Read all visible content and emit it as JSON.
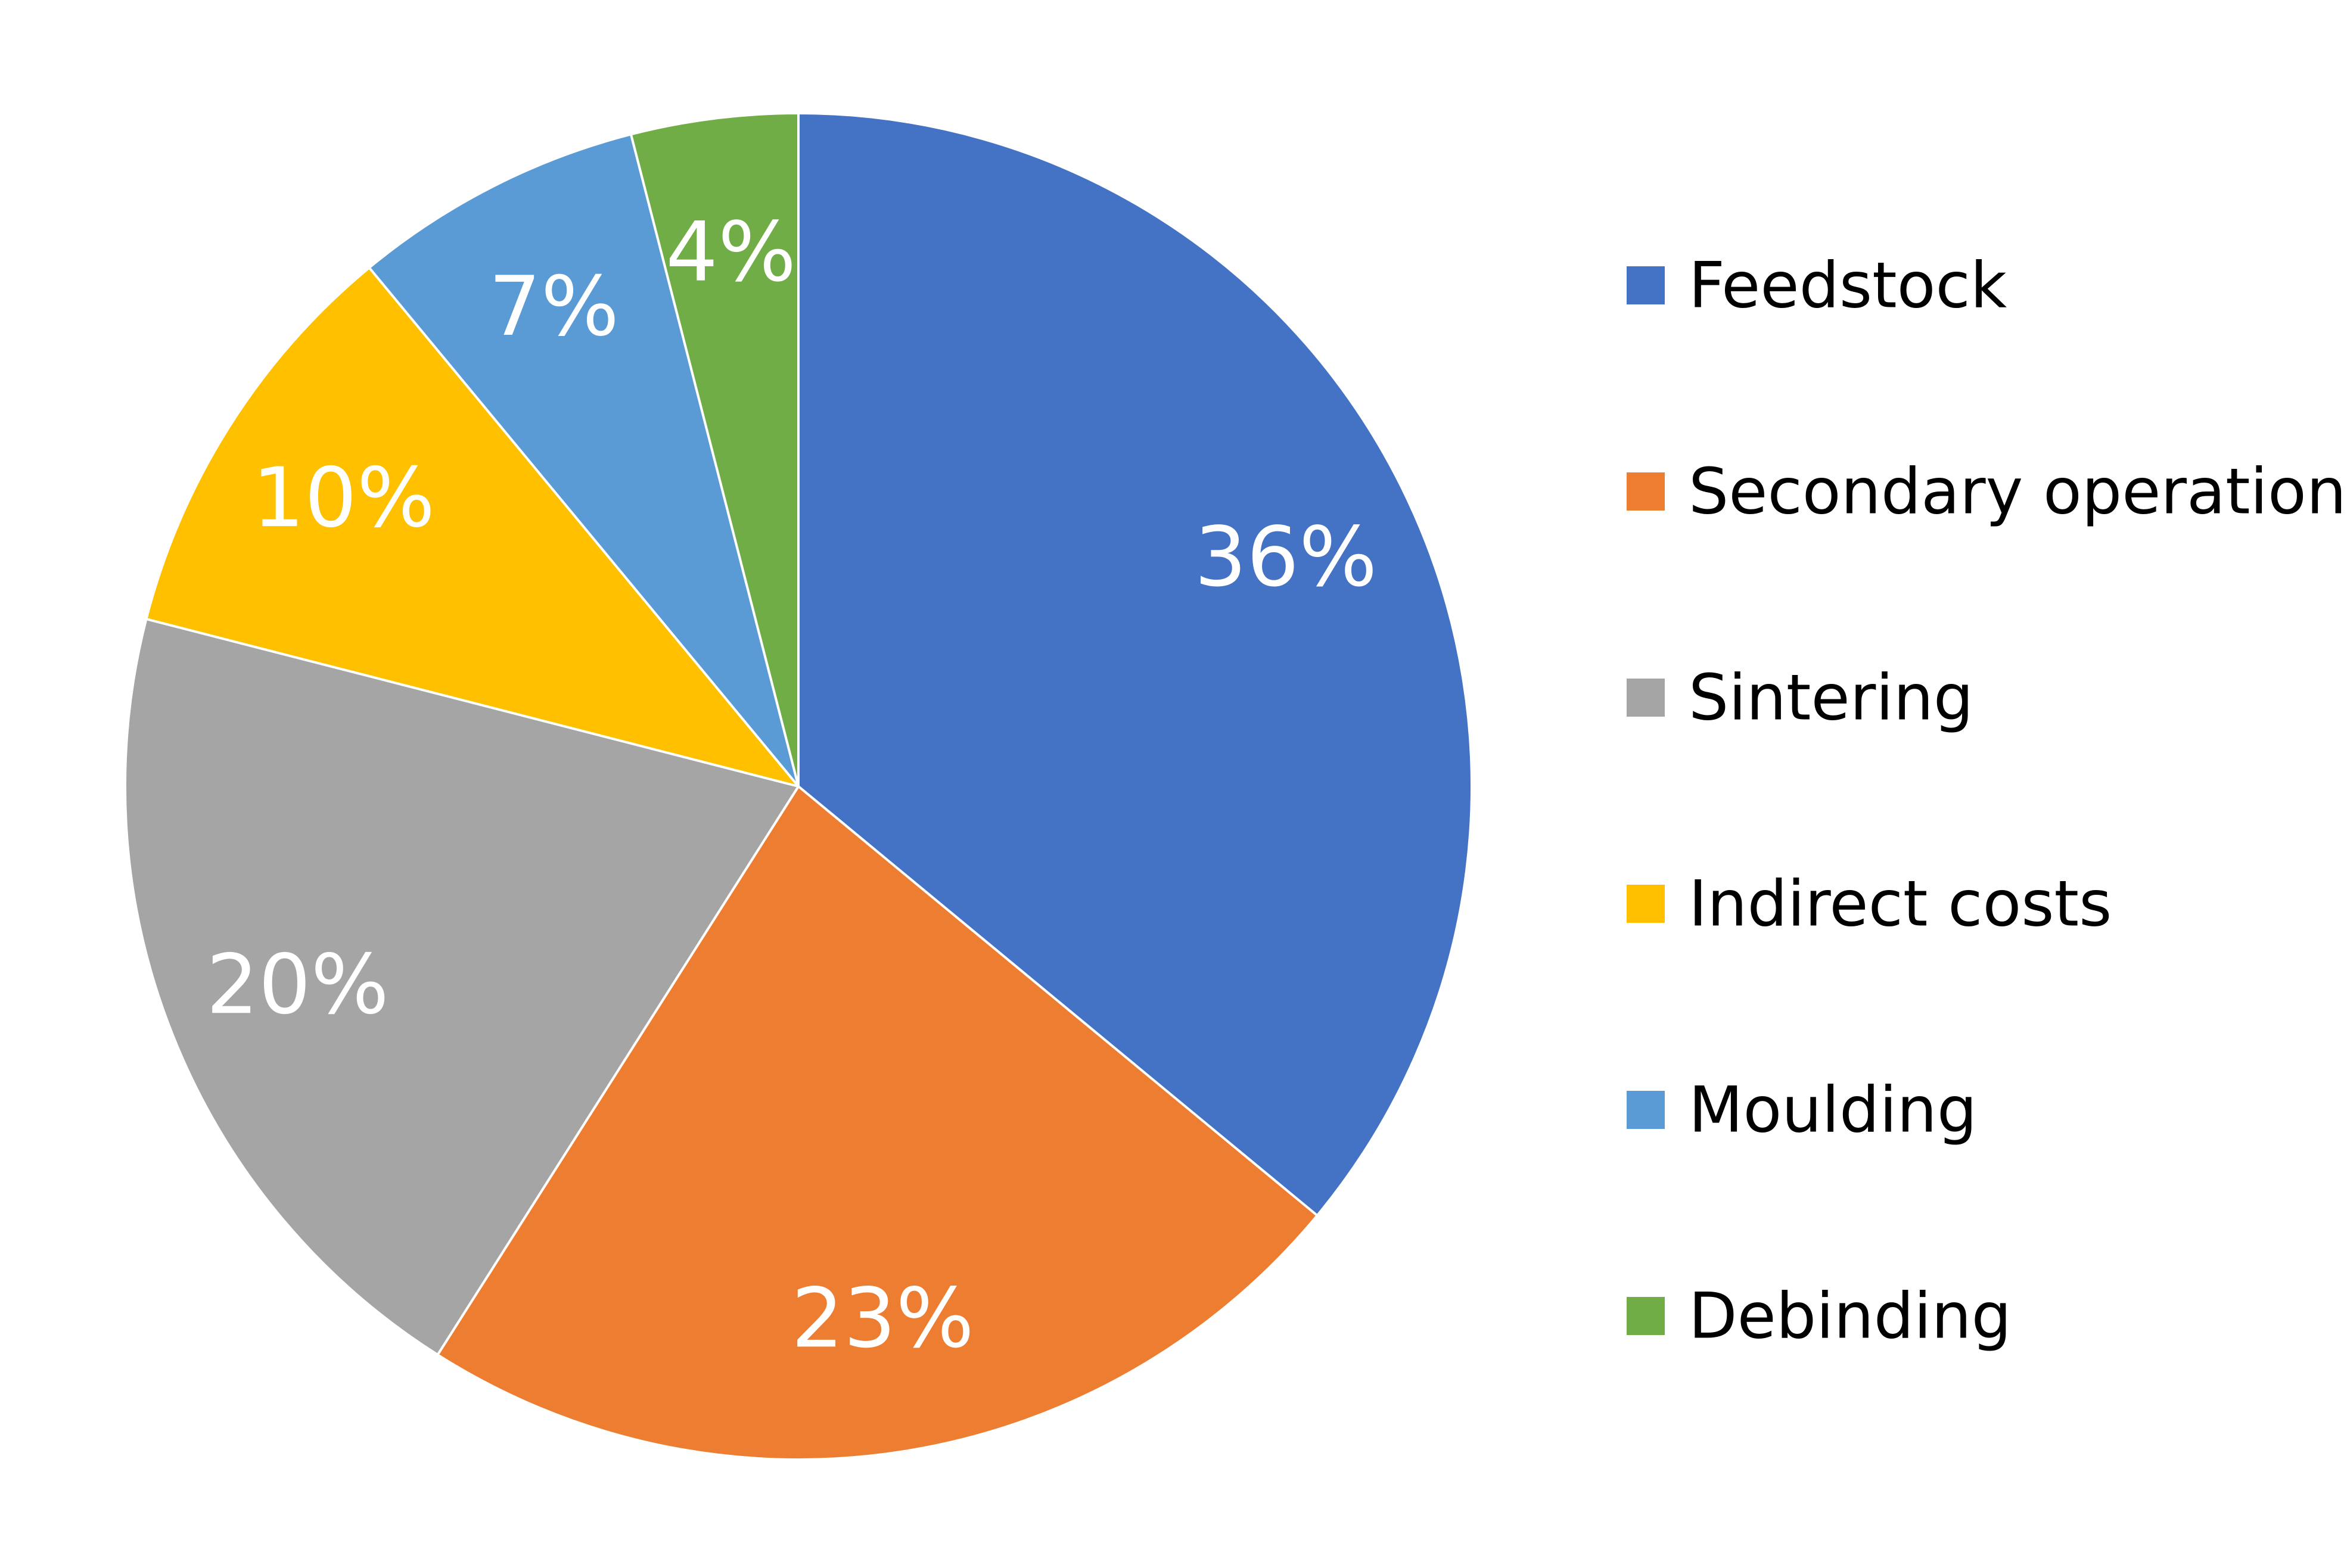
{
  "chart_data": {
    "type": "pie",
    "title": "",
    "legend_position": "right",
    "categories": [
      "Feedstock",
      "Secondary operations",
      "Sintering",
      "Indirect costs",
      "Moulding",
      "Debinding"
    ],
    "values": [
      36,
      23,
      20,
      10,
      7,
      4
    ],
    "labels": [
      "36%",
      "23%",
      "20%",
      "10%",
      "7%",
      "4%"
    ],
    "colors": [
      "#4472C4",
      "#ED7D31",
      "#A5A5A5",
      "#FFC000",
      "#5B9BD5",
      "#70AD47"
    ]
  }
}
